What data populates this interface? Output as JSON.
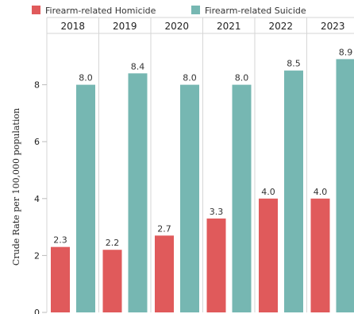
{
  "colors": {
    "homicide": "#e05a5b",
    "suicide": "#76b7b2",
    "grid": "#e6e6e6",
    "divider": "#d6d6d6"
  },
  "legend": [
    {
      "label": "Firearm-related Homicide",
      "color": "#e05a5b"
    },
    {
      "label": "Firearm-related Suicide",
      "color": "#76b7b2"
    }
  ],
  "chart_data": {
    "type": "bar",
    "categories": [
      "2018",
      "2019",
      "2020",
      "2021",
      "2022",
      "2023"
    ],
    "series": [
      {
        "name": "Firearm-related Homicide",
        "values": [
          2.3,
          2.2,
          2.7,
          3.3,
          4.0,
          4.0
        ],
        "labels": [
          "2.3",
          "2.2",
          "2.7",
          "3.3",
          "4.0",
          "4.0"
        ]
      },
      {
        "name": "Firearm-related Suicide",
        "values": [
          8.0,
          8.4,
          8.0,
          8.0,
          8.5,
          8.9
        ],
        "labels": [
          "8.0",
          "8.4",
          "8.0",
          "8.0",
          "8.5",
          "8.9"
        ]
      }
    ],
    "ylabel": "Crude Rate per 100,000 population",
    "ylim": [
      0,
      9.5
    ],
    "yticks": [
      0,
      2,
      4,
      6,
      8
    ],
    "grid": false,
    "legend_position": "top-left"
  }
}
